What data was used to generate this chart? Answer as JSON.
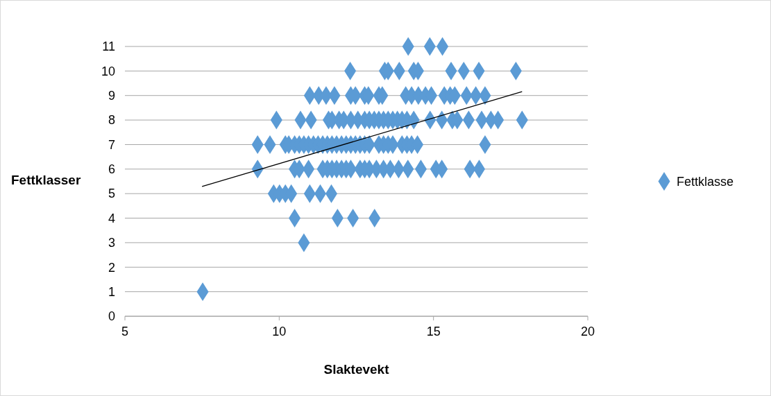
{
  "chart_data": {
    "type": "scatter",
    "xlabel": "Slaktevekt",
    "ylabel": "Fettklasser",
    "xlim": [
      5,
      20
    ],
    "xticks": [
      5,
      10,
      15,
      20
    ],
    "ylim": [
      0,
      11
    ],
    "yticks": [
      0,
      1,
      2,
      3,
      4,
      5,
      6,
      7,
      8,
      9,
      10,
      11
    ],
    "grid": "y",
    "legend": "right",
    "series": [
      {
        "name": "Fettklasse",
        "color": "#5b9bd5",
        "marker": "diamond",
        "x": [
          14.18,
          14.88,
          15.29,
          12.3,
          13.42,
          13.53,
          13.89,
          14.36,
          14.5,
          15.57,
          15.98,
          16.47,
          17.67,
          10.99,
          11.28,
          11.52,
          11.79,
          12.32,
          12.47,
          12.77,
          12.89,
          13.23,
          13.34,
          14.1,
          14.29,
          14.51,
          14.74,
          14.93,
          15.35,
          15.54,
          15.69,
          16.07,
          16.37,
          16.67,
          9.91,
          10.69,
          11.03,
          11.6,
          11.71,
          11.94,
          12.09,
          12.32,
          12.55,
          12.77,
          12.92,
          13.08,
          13.23,
          13.38,
          13.53,
          13.68,
          13.83,
          13.98,
          14.14,
          14.36,
          14.89,
          15.27,
          15.61,
          15.77,
          16.14,
          16.56,
          16.86,
          17.09,
          17.87,
          9.3,
          9.7,
          10.2,
          10.31,
          10.5,
          10.65,
          10.8,
          10.95,
          11.11,
          11.26,
          11.41,
          11.56,
          11.71,
          11.86,
          12.02,
          12.17,
          12.32,
          12.47,
          12.62,
          12.77,
          12.92,
          13.23,
          13.38,
          13.53,
          13.68,
          13.98,
          14.14,
          14.29,
          14.48,
          16.67,
          9.3,
          10.5,
          10.65,
          10.95,
          11.41,
          11.56,
          11.71,
          11.86,
          12.02,
          12.17,
          12.32,
          12.62,
          12.77,
          12.92,
          13.15,
          13.38,
          13.6,
          13.87,
          14.17,
          14.59,
          15.08,
          15.27,
          16.18,
          16.48,
          9.82,
          10.01,
          10.2,
          10.39,
          10.99,
          11.33,
          11.69,
          10.5,
          11.89,
          12.39,
          13.09,
          10.8,
          7.52
        ],
        "values": [
          11,
          11,
          11,
          10,
          10,
          10,
          10,
          10,
          10,
          10,
          10,
          10,
          10,
          9,
          9,
          9,
          9,
          9,
          9,
          9,
          9,
          9,
          9,
          9,
          9,
          9,
          9,
          9,
          9,
          9,
          9,
          9,
          9,
          9,
          8,
          8,
          8,
          8,
          8,
          8,
          8,
          8,
          8,
          8,
          8,
          8,
          8,
          8,
          8,
          8,
          8,
          8,
          8,
          8,
          8,
          8,
          8,
          8,
          8,
          8,
          8,
          8,
          8,
          7,
          7,
          7,
          7,
          7,
          7,
          7,
          7,
          7,
          7,
          7,
          7,
          7,
          7,
          7,
          7,
          7,
          7,
          7,
          7,
          7,
          7,
          7,
          7,
          7,
          7,
          7,
          7,
          7,
          7,
          6,
          6,
          6,
          6,
          6,
          6,
          6,
          6,
          6,
          6,
          6,
          6,
          6,
          6,
          6,
          6,
          6,
          6,
          6,
          6,
          6,
          6,
          6,
          6,
          5,
          5,
          5,
          5,
          5,
          5,
          5,
          4,
          4,
          4,
          4,
          3,
          1
        ]
      },
      {
        "type": "line",
        "color": "#000000",
        "marker": "none",
        "x": [
          7.5,
          17.87
        ],
        "values": [
          5.29,
          9.16
        ]
      }
    ]
  }
}
